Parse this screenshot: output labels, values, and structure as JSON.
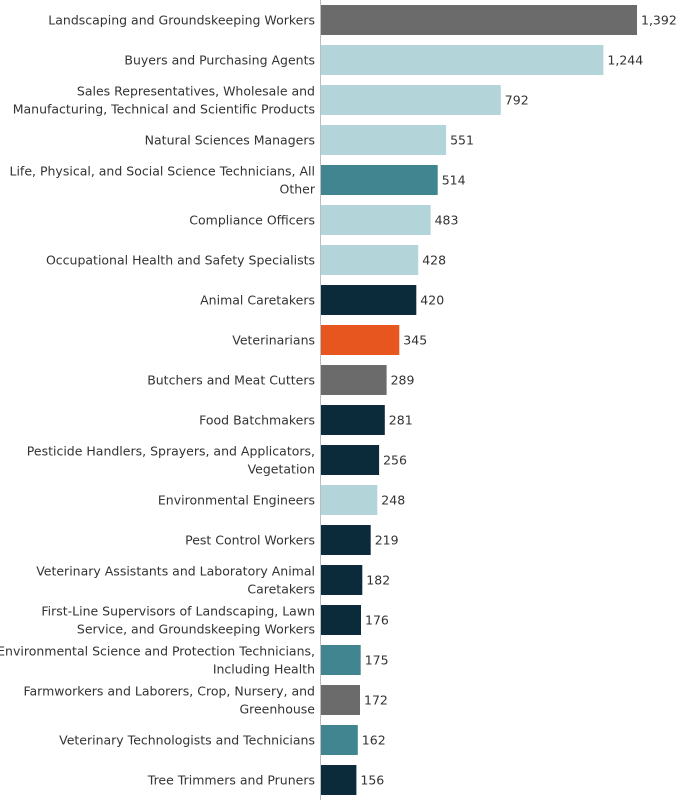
{
  "chart_data": {
    "type": "bar",
    "orientation": "horizontal",
    "title": "",
    "xlabel": "",
    "ylabel": "",
    "xlim": [
      0,
      1392
    ],
    "grid": false,
    "legend": "none",
    "colors": {
      "gray": "#6b6b6b",
      "light_blue": "#b3d5da",
      "teal": "#40858f",
      "navy": "#0b2a3a",
      "orange": "#e8561f"
    },
    "bars": [
      {
        "label": [
          "Landscaping and Groundskeeping Workers"
        ],
        "value": 1392,
        "display": "1,392",
        "color": "gray"
      },
      {
        "label": [
          "Buyers and Purchasing Agents"
        ],
        "value": 1244,
        "display": "1,244",
        "color": "light_blue"
      },
      {
        "label": [
          "Sales Representatives, Wholesale and",
          "Manufacturing, Technical and Scientific Products"
        ],
        "value": 792,
        "display": "792",
        "color": "light_blue"
      },
      {
        "label": [
          "Natural Sciences Managers"
        ],
        "value": 551,
        "display": "551",
        "color": "light_blue"
      },
      {
        "label": [
          "Life, Physical, and Social Science Technicians, All",
          "Other"
        ],
        "value": 514,
        "display": "514",
        "color": "teal"
      },
      {
        "label": [
          "Compliance Officers"
        ],
        "value": 483,
        "display": "483",
        "color": "light_blue"
      },
      {
        "label": [
          "Occupational Health and Safety Specialists"
        ],
        "value": 428,
        "display": "428",
        "color": "light_blue"
      },
      {
        "label": [
          "Animal Caretakers"
        ],
        "value": 420,
        "display": "420",
        "color": "navy"
      },
      {
        "label": [
          "Veterinarians"
        ],
        "value": 345,
        "display": "345",
        "color": "orange"
      },
      {
        "label": [
          "Butchers and Meat Cutters"
        ],
        "value": 289,
        "display": "289",
        "color": "gray"
      },
      {
        "label": [
          "Food Batchmakers"
        ],
        "value": 281,
        "display": "281",
        "color": "navy"
      },
      {
        "label": [
          "Pesticide Handlers, Sprayers, and Applicators,",
          "Vegetation"
        ],
        "value": 256,
        "display": "256",
        "color": "navy"
      },
      {
        "label": [
          "Environmental Engineers"
        ],
        "value": 248,
        "display": "248",
        "color": "light_blue"
      },
      {
        "label": [
          "Pest Control Workers"
        ],
        "value": 219,
        "display": "219",
        "color": "navy"
      },
      {
        "label": [
          "Veterinary Assistants and Laboratory Animal",
          "Caretakers"
        ],
        "value": 182,
        "display": "182",
        "color": "navy"
      },
      {
        "label": [
          "First-Line Supervisors of Landscaping, Lawn",
          "Service, and Groundskeeping Workers"
        ],
        "value": 176,
        "display": "176",
        "color": "navy"
      },
      {
        "label": [
          "Environmental Science and Protection Technicians,",
          "Including Health"
        ],
        "value": 175,
        "display": "175",
        "color": "teal"
      },
      {
        "label": [
          "Farmworkers and Laborers, Crop, Nursery, and",
          "Greenhouse"
        ],
        "value": 172,
        "display": "172",
        "color": "gray"
      },
      {
        "label": [
          "Veterinary Technologists and Technicians"
        ],
        "value": 162,
        "display": "162",
        "color": "teal"
      },
      {
        "label": [
          "Tree Trimmers and Pruners"
        ],
        "value": 156,
        "display": "156",
        "color": "navy"
      }
    ]
  }
}
